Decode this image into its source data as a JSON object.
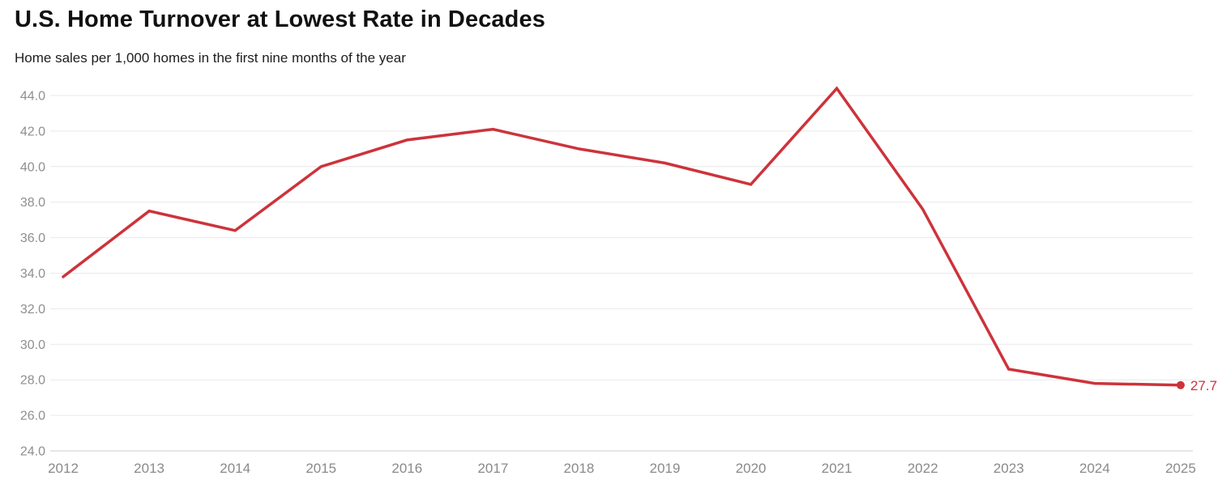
{
  "header": {
    "title": "U.S. Home Turnover at Lowest Rate in Decades",
    "subtitle": "Home sales per 1,000 homes in the first nine months of the year"
  },
  "colors": {
    "line": "#cd333b",
    "end_dot": "#cd333b",
    "end_label": "#cd333b",
    "gridline": "#e9e9e9",
    "baseline": "#cccccc",
    "y_tick_label": "#8f8f8f",
    "x_tick_label": "#8a8a8a",
    "background": "#ffffff"
  },
  "chart_data": {
    "type": "line",
    "title": "U.S. Home Turnover at Lowest Rate in Decades",
    "subtitle": "Home sales per 1,000 homes in the first nine months of the year",
    "categories": [
      "2012",
      "2013",
      "2014",
      "2015",
      "2016",
      "2017",
      "2018",
      "2019",
      "2020",
      "2021",
      "2022",
      "2023",
      "2024",
      "2025"
    ],
    "series": [
      {
        "name": "Home sales per 1,000 homes",
        "values": [
          33.8,
          37.5,
          36.4,
          40.0,
          41.5,
          42.1,
          41.0,
          40.2,
          39.0,
          44.4,
          37.6,
          28.6,
          27.8,
          27.7
        ]
      }
    ],
    "xlabel": "",
    "ylabel": "",
    "ylim": [
      24.0,
      44.0
    ],
    "ytick_step": 2.0,
    "ytick_labels": [
      "24.0",
      "26.0",
      "28.0",
      "30.0",
      "32.0",
      "34.0",
      "36.0",
      "38.0",
      "40.0",
      "42.0",
      "44.0"
    ],
    "grid": "horizontal",
    "legend_position": "none",
    "end_label": "27.7"
  }
}
